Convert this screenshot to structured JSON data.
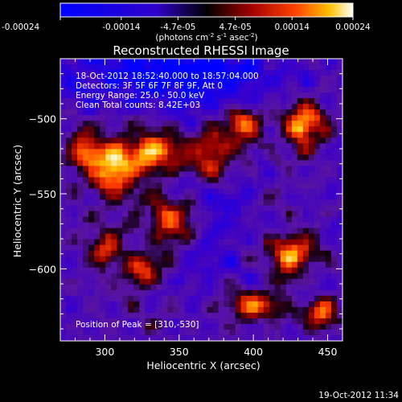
{
  "chart_data": {
    "type": "heatmap",
    "title": "Reconstructed RHESSI Image",
    "xlabel": "Heliocentric X (arcsec)",
    "ylabel": "Heliocentric Y (arcsec)",
    "xlim": [
      270,
      460
    ],
    "ylim": [
      -648,
      -460
    ],
    "x_ticks": [
      300,
      350,
      400,
      450
    ],
    "y_ticks": [
      -500,
      -550,
      -600
    ],
    "colorbar": {
      "label_base": "(photons cm",
      "label_exp1": "-2",
      "label_mid": " s",
      "label_exp2": "-1",
      "label_mid2": " asec",
      "label_exp3": "-2",
      "label_end": ")",
      "min": -0.00024,
      "max": 0.00024,
      "tick_labels": [
        "-0.00024",
        "-0.00014",
        "-4.7e-05",
        "4.7e-05",
        "0.00014",
        "0.00024"
      ]
    },
    "annotations": {
      "time_range": "18-Oct-2012 18:52:40.000 to 18:57:04.000",
      "detectors": "Detectors: 3F 5F 6F 7F 8F 9F, Att 0",
      "energy_range": "Energy Range: 25.0 - 50.0 keV",
      "clean_counts": "Clean     Total counts: 8.42E+03",
      "peak": "Position of Peak = [310,-530]"
    },
    "peak_position": [
      310,
      -530
    ],
    "sources": [
      {
        "x": 305,
        "y": -532,
        "amp": 1.0,
        "sx": 12,
        "sy": 16
      },
      {
        "x": 336,
        "y": -522,
        "amp": 0.85,
        "sx": 12,
        "sy": 12
      },
      {
        "x": 348,
        "y": -568,
        "amp": 0.9,
        "sx": 13,
        "sy": 12
      },
      {
        "x": 370,
        "y": -525,
        "amp": 0.85,
        "sx": 10,
        "sy": 14
      },
      {
        "x": 392,
        "y": -505,
        "amp": 0.75,
        "sx": 9,
        "sy": 10
      },
      {
        "x": 433,
        "y": -505,
        "amp": 0.8,
        "sx": 10,
        "sy": 13
      },
      {
        "x": 425,
        "y": -590,
        "amp": 0.75,
        "sx": 12,
        "sy": 10
      },
      {
        "x": 400,
        "y": -625,
        "amp": 0.8,
        "sx": 12,
        "sy": 7
      },
      {
        "x": 325,
        "y": -600,
        "amp": 0.7,
        "sx": 9,
        "sy": 8
      },
      {
        "x": 300,
        "y": -585,
        "amp": 0.55,
        "sx": 8,
        "sy": 9
      },
      {
        "x": 445,
        "y": -630,
        "amp": 0.7,
        "sx": 8,
        "sy": 8
      },
      {
        "x": 285,
        "y": -520,
        "amp": 0.5,
        "sx": 7,
        "sy": 10
      }
    ]
  },
  "timestamp": "19-Oct-2012 11:34"
}
